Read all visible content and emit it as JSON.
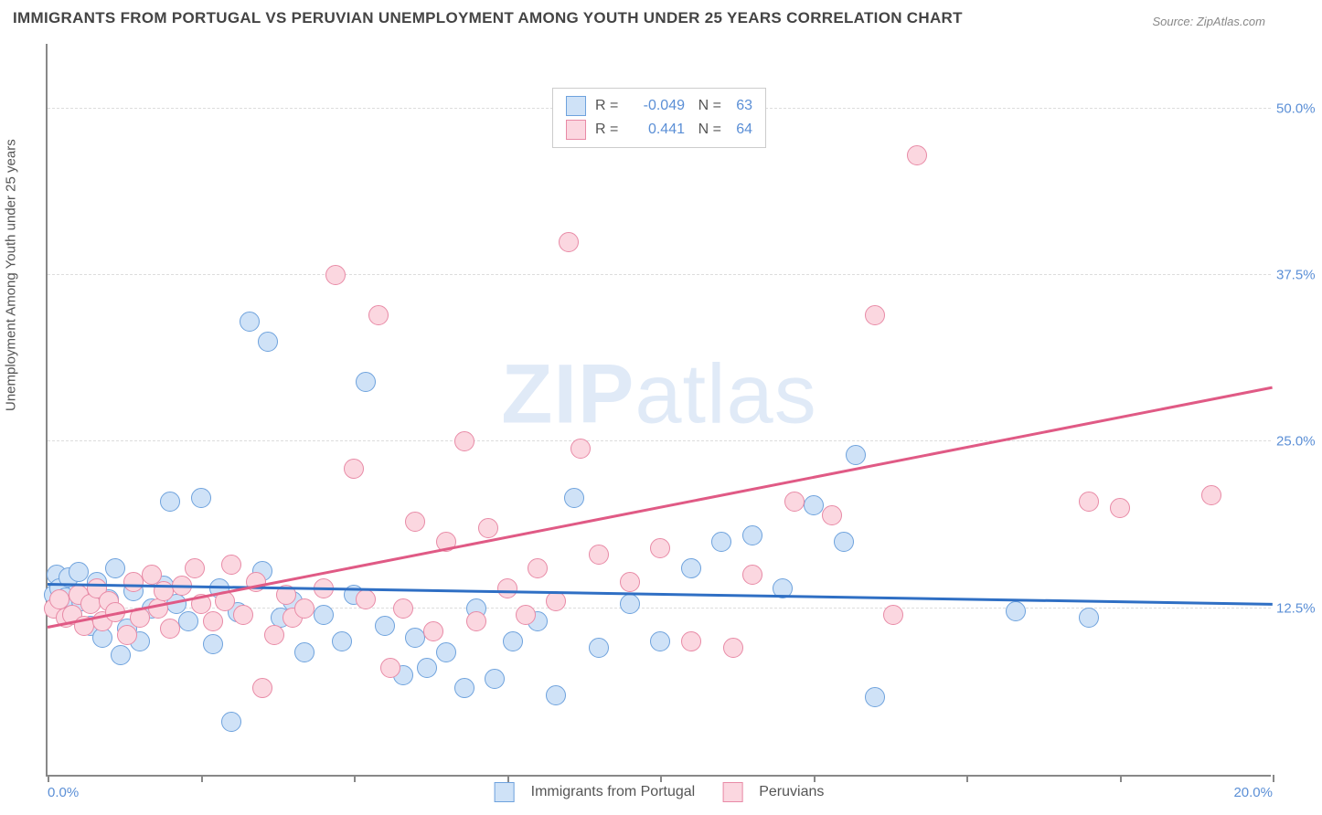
{
  "title": "IMMIGRANTS FROM PORTUGAL VS PERUVIAN UNEMPLOYMENT AMONG YOUTH UNDER 25 YEARS CORRELATION CHART",
  "source_prefix": "Source: ",
  "source": "ZipAtlas.com",
  "y_axis_label": "Unemployment Among Youth under 25 years",
  "watermark_a": "ZIP",
  "watermark_b": "atlas",
  "chart": {
    "type": "scatter",
    "xlim": [
      0,
      20
    ],
    "ylim": [
      0,
      55
    ],
    "x_ticks": [
      0,
      2.5,
      5,
      7.5,
      10,
      12.5,
      15,
      17.5,
      20
    ],
    "x_tick_labels": {
      "0": "0.0%",
      "20": "20.0%"
    },
    "y_gridlines": [
      12.5,
      25,
      37.5,
      50
    ],
    "y_tick_labels": {
      "12.5": "12.5%",
      "25": "25.0%",
      "37.5": "37.5%",
      "50": "50.0%"
    },
    "background_color": "#ffffff",
    "grid_color": "#dddddd",
    "axis_color": "#888888",
    "value_color": "#5b8fd6",
    "text_color": "#555555",
    "title_color": "#444444",
    "series": [
      {
        "key": "portugal",
        "label": "Immigrants from Portugal",
        "fill": "#cfe2f7",
        "stroke": "#6ea2dd",
        "r_label": "R =",
        "r": "-0.049",
        "n_label": "N =",
        "n": "63",
        "trend": {
          "y_at_x0": 14.2,
          "y_at_xmax": 12.7,
          "color": "#2f6fc4"
        },
        "points": [
          [
            0.1,
            13.5
          ],
          [
            0.15,
            15.0
          ],
          [
            0.2,
            14.0
          ],
          [
            0.22,
            12.8
          ],
          [
            0.3,
            13.3
          ],
          [
            0.35,
            14.8
          ],
          [
            0.4,
            12.0
          ],
          [
            0.5,
            15.2
          ],
          [
            0.55,
            13.0
          ],
          [
            0.7,
            11.2
          ],
          [
            0.8,
            14.5
          ],
          [
            0.9,
            10.3
          ],
          [
            1.0,
            13.2
          ],
          [
            1.1,
            15.5
          ],
          [
            1.2,
            9.0
          ],
          [
            1.3,
            11.0
          ],
          [
            1.4,
            13.8
          ],
          [
            1.5,
            10.0
          ],
          [
            1.7,
            12.5
          ],
          [
            1.9,
            14.2
          ],
          [
            2.0,
            20.5
          ],
          [
            2.1,
            12.8
          ],
          [
            2.3,
            11.5
          ],
          [
            2.5,
            20.8
          ],
          [
            2.7,
            9.8
          ],
          [
            2.8,
            14.0
          ],
          [
            3.0,
            4.0
          ],
          [
            3.1,
            12.2
          ],
          [
            3.3,
            34.0
          ],
          [
            3.5,
            15.3
          ],
          [
            3.6,
            32.5
          ],
          [
            3.8,
            11.8
          ],
          [
            4.0,
            13.0
          ],
          [
            4.2,
            9.2
          ],
          [
            4.5,
            12.0
          ],
          [
            4.8,
            10.0
          ],
          [
            5.0,
            13.5
          ],
          [
            5.2,
            29.5
          ],
          [
            5.5,
            11.2
          ],
          [
            5.8,
            7.5
          ],
          [
            6.0,
            10.3
          ],
          [
            6.2,
            8.0
          ],
          [
            6.5,
            9.2
          ],
          [
            6.8,
            6.5
          ],
          [
            7.0,
            12.5
          ],
          [
            7.3,
            7.2
          ],
          [
            7.6,
            10.0
          ],
          [
            8.0,
            11.5
          ],
          [
            8.3,
            6.0
          ],
          [
            8.6,
            20.8
          ],
          [
            9.0,
            9.5
          ],
          [
            9.5,
            12.8
          ],
          [
            10.0,
            10.0
          ],
          [
            10.5,
            15.5
          ],
          [
            11.0,
            17.5
          ],
          [
            11.5,
            18.0
          ],
          [
            12.0,
            14.0
          ],
          [
            12.5,
            20.2
          ],
          [
            13.0,
            17.5
          ],
          [
            13.2,
            24.0
          ],
          [
            13.5,
            5.8
          ],
          [
            15.8,
            12.3
          ],
          [
            17.0,
            11.8
          ]
        ]
      },
      {
        "key": "peruvians",
        "label": "Peruvians",
        "fill": "#fbd7e0",
        "stroke": "#e88aa6",
        "r_label": "R =",
        "r": "0.441",
        "n_label": "N =",
        "n": "64",
        "trend": {
          "y_at_x0": 11.0,
          "y_at_xmax": 29.0,
          "color": "#e05a85"
        },
        "points": [
          [
            0.1,
            12.5
          ],
          [
            0.2,
            13.2
          ],
          [
            0.3,
            11.8
          ],
          [
            0.4,
            12.0
          ],
          [
            0.5,
            13.5
          ],
          [
            0.6,
            11.2
          ],
          [
            0.7,
            12.8
          ],
          [
            0.8,
            14.0
          ],
          [
            0.9,
            11.5
          ],
          [
            1.0,
            13.0
          ],
          [
            1.1,
            12.2
          ],
          [
            1.3,
            10.5
          ],
          [
            1.4,
            14.5
          ],
          [
            1.5,
            11.8
          ],
          [
            1.7,
            15.0
          ],
          [
            1.8,
            12.5
          ],
          [
            1.9,
            13.8
          ],
          [
            2.0,
            11.0
          ],
          [
            2.2,
            14.2
          ],
          [
            2.4,
            15.5
          ],
          [
            2.5,
            12.8
          ],
          [
            2.7,
            11.5
          ],
          [
            2.9,
            13.0
          ],
          [
            3.0,
            15.8
          ],
          [
            3.2,
            12.0
          ],
          [
            3.4,
            14.5
          ],
          [
            3.5,
            6.5
          ],
          [
            3.7,
            10.5
          ],
          [
            3.9,
            13.5
          ],
          [
            4.0,
            11.8
          ],
          [
            4.2,
            12.5
          ],
          [
            4.5,
            14.0
          ],
          [
            4.7,
            37.5
          ],
          [
            5.0,
            23.0
          ],
          [
            5.2,
            13.2
          ],
          [
            5.4,
            34.5
          ],
          [
            5.6,
            8.0
          ],
          [
            5.8,
            12.5
          ],
          [
            6.0,
            19.0
          ],
          [
            6.3,
            10.8
          ],
          [
            6.5,
            17.5
          ],
          [
            6.8,
            25.0
          ],
          [
            7.0,
            11.5
          ],
          [
            7.2,
            18.5
          ],
          [
            7.5,
            14.0
          ],
          [
            7.8,
            12.0
          ],
          [
            8.0,
            15.5
          ],
          [
            8.3,
            13.0
          ],
          [
            8.5,
            40.0
          ],
          [
            8.7,
            24.5
          ],
          [
            9.0,
            16.5
          ],
          [
            9.5,
            14.5
          ],
          [
            10.0,
            17.0
          ],
          [
            10.5,
            10.0
          ],
          [
            11.2,
            9.5
          ],
          [
            11.5,
            15.0
          ],
          [
            12.2,
            20.5
          ],
          [
            12.8,
            19.5
          ],
          [
            13.5,
            34.5
          ],
          [
            13.8,
            12.0
          ],
          [
            14.2,
            46.5
          ],
          [
            17.0,
            20.5
          ],
          [
            17.5,
            20.0
          ],
          [
            19.0,
            21.0
          ]
        ]
      }
    ]
  }
}
